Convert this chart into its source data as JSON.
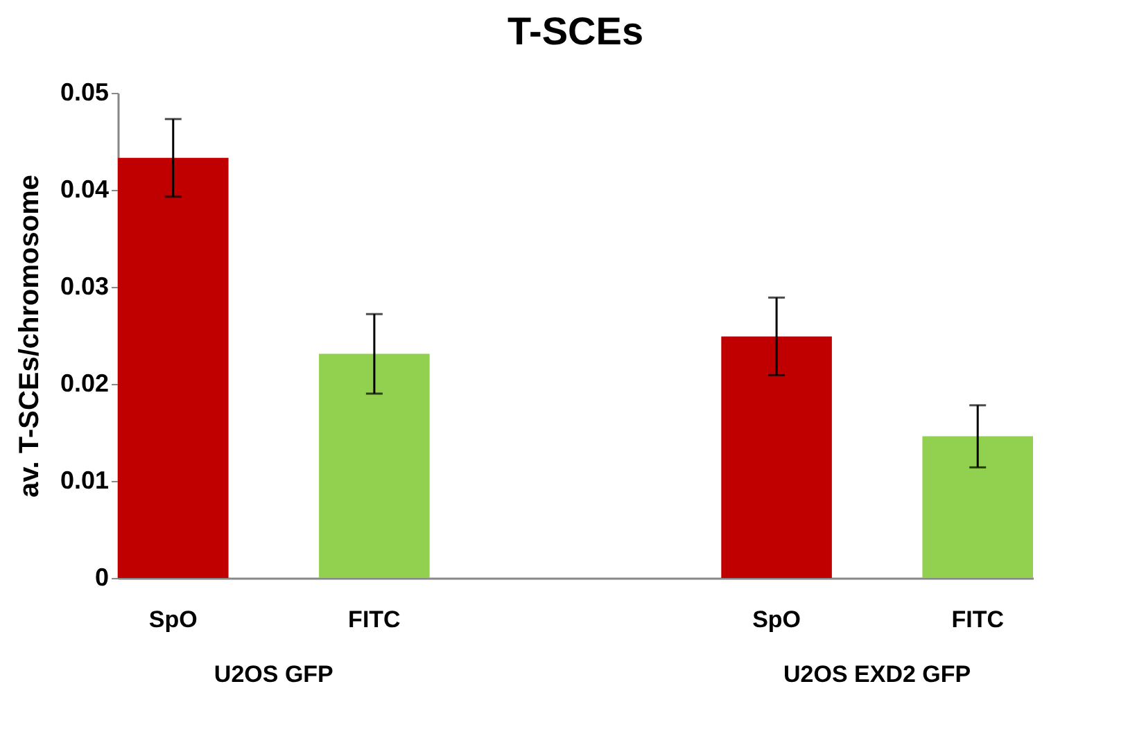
{
  "chart_data": {
    "type": "bar",
    "title": "T-SCEs",
    "ylabel": "av. T-SCEs/chromosome",
    "categories": [
      "SpO",
      "FITC",
      "SpO",
      "FITC"
    ],
    "values": [
      0.0433,
      0.0231,
      0.0249,
      0.0146
    ],
    "errors": [
      0.004,
      0.0041,
      0.004,
      0.0032
    ],
    "colors": [
      "#c00000",
      "#92d050",
      "#c00000",
      "#92d050"
    ],
    "ylim": [
      0,
      0.05
    ],
    "yticks": [
      0,
      0.01,
      0.02,
      0.03,
      0.04,
      0.05
    ],
    "grid": false,
    "legend": false,
    "annotations": [
      "U2OS GFP",
      "U2OS EXD2 GFP"
    ]
  }
}
